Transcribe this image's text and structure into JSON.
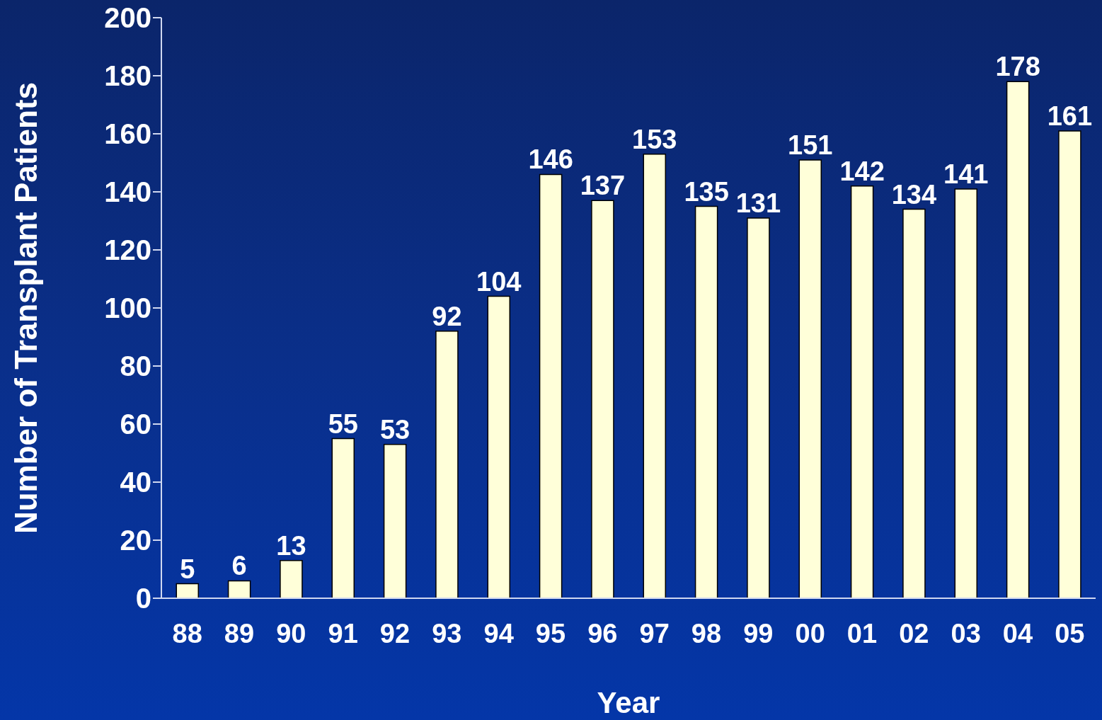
{
  "chart_data": {
    "type": "bar",
    "xlabel": "Year",
    "ylabel": "Number of Transplant Patients",
    "categories": [
      "88",
      "89",
      "90",
      "91",
      "92",
      "93",
      "94",
      "95",
      "96",
      "97",
      "98",
      "99",
      "00",
      "01",
      "02",
      "03",
      "04",
      "05"
    ],
    "values": [
      5,
      6,
      13,
      55,
      53,
      92,
      104,
      146,
      137,
      153,
      135,
      131,
      151,
      142,
      134,
      141,
      178,
      161
    ],
    "color": "#ffffd9",
    "ylim": [
      0,
      200
    ],
    "yticks": [
      0,
      20,
      40,
      60,
      80,
      100,
      120,
      140,
      160,
      180,
      200
    ],
    "grid": false,
    "data_labels": true
  }
}
